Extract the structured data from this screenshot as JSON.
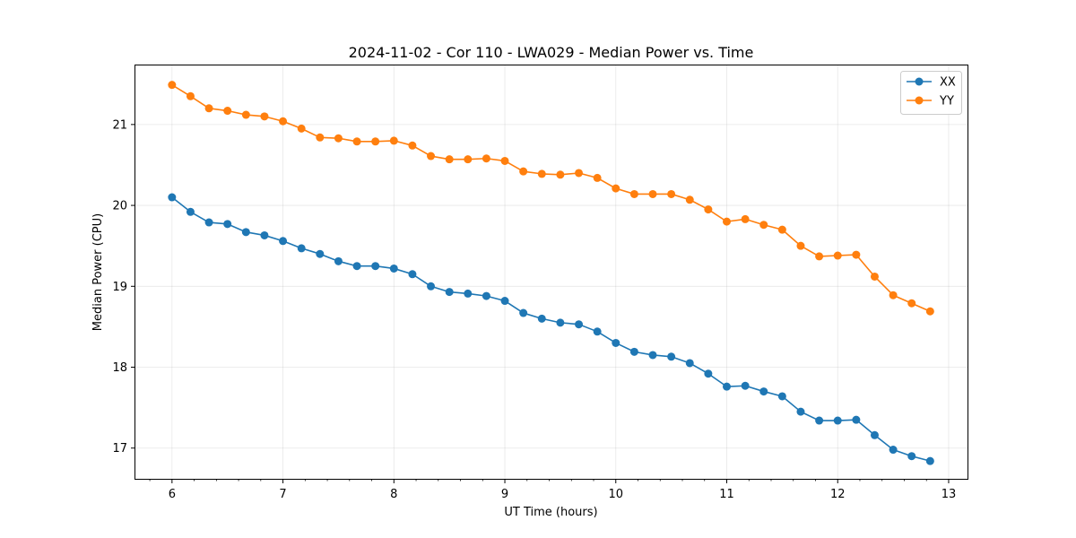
{
  "chart_data": {
    "type": "line",
    "title": "2024-11-02 - Cor 110 - LWA029 - Median Power vs. Time",
    "xlabel": "UT Time (hours)",
    "ylabel": "Median Power (CPU)",
    "xlim": [
      5.67,
      13.17
    ],
    "ylim": [
      16.62,
      21.73
    ],
    "xticks": [
      6,
      7,
      8,
      9,
      10,
      11,
      12,
      13
    ],
    "yticks": [
      17,
      18,
      19,
      20,
      21
    ],
    "grid": true,
    "legend_position": "top-right",
    "x": [
      6.0,
      6.1667,
      6.3333,
      6.5,
      6.6667,
      6.8333,
      7.0,
      7.1667,
      7.3333,
      7.5,
      7.6667,
      7.8333,
      8.0,
      8.1667,
      8.3333,
      8.5,
      8.6667,
      8.8333,
      9.0,
      9.1667,
      9.3333,
      9.5,
      9.6667,
      9.8333,
      10.0,
      10.1667,
      10.3333,
      10.5,
      10.6667,
      10.8333,
      11.0,
      11.1667,
      11.3333,
      11.5,
      11.6667,
      11.8333,
      12.0,
      12.1667,
      12.3333,
      12.5,
      12.6667,
      12.8333
    ],
    "series": [
      {
        "name": "XX",
        "color": "#1f77b4",
        "values": [
          20.1,
          19.92,
          19.79,
          19.77,
          19.67,
          19.63,
          19.56,
          19.47,
          19.4,
          19.31,
          19.25,
          19.25,
          19.22,
          19.15,
          19.0,
          18.93,
          18.91,
          18.88,
          18.82,
          18.67,
          18.6,
          18.55,
          18.53,
          18.44,
          18.3,
          18.19,
          18.15,
          18.13,
          18.05,
          17.92,
          17.76,
          17.77,
          17.7,
          17.64,
          17.45,
          17.34,
          17.34,
          17.35,
          17.16,
          16.98,
          16.9,
          16.84
        ]
      },
      {
        "name": "YY",
        "color": "#ff7f0e",
        "values": [
          21.49,
          21.35,
          21.2,
          21.17,
          21.12,
          21.1,
          21.04,
          20.95,
          20.84,
          20.83,
          20.79,
          20.79,
          20.8,
          20.74,
          20.61,
          20.57,
          20.57,
          20.58,
          20.55,
          20.42,
          20.39,
          20.38,
          20.4,
          20.34,
          20.21,
          20.14,
          20.14,
          20.14,
          20.07,
          19.95,
          19.8,
          19.83,
          19.76,
          19.7,
          19.5,
          19.37,
          19.38,
          19.39,
          19.12,
          18.89,
          18.79,
          18.69
        ]
      }
    ]
  }
}
